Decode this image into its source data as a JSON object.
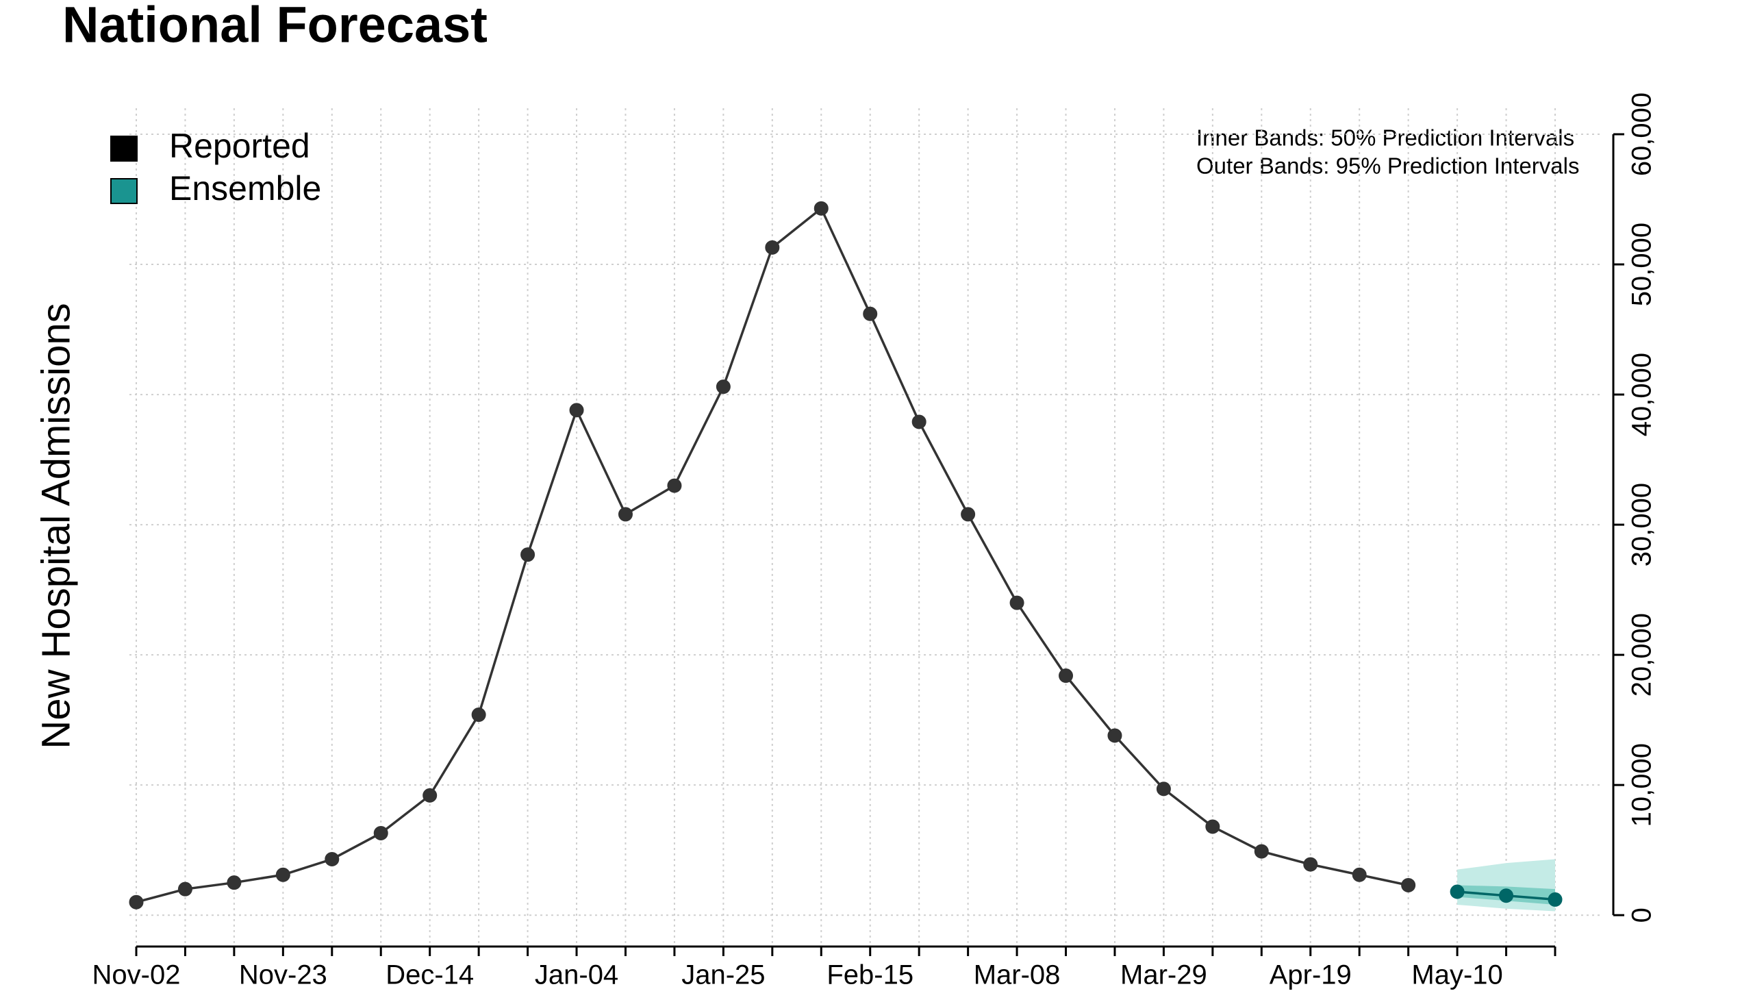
{
  "chart_data": {
    "type": "line",
    "title": "National Forecast",
    "y_label": "New Hospital Admissions",
    "annotations": [
      "Inner Bands: 50% Prediction Intervals",
      "Outer Bands: 95% Prediction Intervals"
    ],
    "categories": [
      "Nov-02",
      null,
      null,
      "Nov-23",
      null,
      null,
      "Dec-14",
      null,
      null,
      "Jan-04",
      null,
      null,
      "Jan-25",
      null,
      null,
      "Feb-15",
      null,
      null,
      "Mar-08",
      null,
      null,
      "Mar-29",
      null,
      null,
      "Apr-19",
      null,
      null,
      "May-10",
      null,
      null
    ],
    "series": [
      {
        "name": "Reported",
        "color": "#333333",
        "legend_color": "#000000",
        "values": [
          1000,
          2000,
          2500,
          3100,
          4300,
          6300,
          9200,
          15400,
          27700,
          38800,
          30800,
          33000,
          40600,
          51300,
          54300,
          46200,
          37900,
          30800,
          24000,
          18400,
          13800,
          9700,
          6800,
          4900,
          3900,
          3100,
          2300,
          null,
          null,
          null
        ]
      },
      {
        "name": "Ensemble",
        "color": "#006666",
        "legend_color": "#1a9490",
        "inner_band_color": "#7fcfc5",
        "outer_band_color": "#c4ebe6",
        "values": [
          null,
          null,
          null,
          null,
          null,
          null,
          null,
          null,
          null,
          null,
          null,
          null,
          null,
          null,
          null,
          null,
          null,
          null,
          null,
          null,
          null,
          null,
          null,
          null,
          null,
          null,
          null,
          1800,
          1500,
          1200
        ],
        "lower_95": [
          null,
          null,
          null,
          null,
          null,
          null,
          null,
          null,
          null,
          null,
          null,
          null,
          null,
          null,
          null,
          null,
          null,
          null,
          null,
          null,
          null,
          null,
          null,
          null,
          null,
          null,
          null,
          800,
          500,
          300
        ],
        "upper_95": [
          null,
          null,
          null,
          null,
          null,
          null,
          null,
          null,
          null,
          null,
          null,
          null,
          null,
          null,
          null,
          null,
          null,
          null,
          null,
          null,
          null,
          null,
          null,
          null,
          null,
          null,
          null,
          3500,
          4000,
          4300
        ],
        "lower_50": [
          null,
          null,
          null,
          null,
          null,
          null,
          null,
          null,
          null,
          null,
          null,
          null,
          null,
          null,
          null,
          null,
          null,
          null,
          null,
          null,
          null,
          null,
          null,
          null,
          null,
          null,
          null,
          1400,
          1100,
          800
        ],
        "upper_50": [
          null,
          null,
          null,
          null,
          null,
          null,
          null,
          null,
          null,
          null,
          null,
          null,
          null,
          null,
          null,
          null,
          null,
          null,
          null,
          null,
          null,
          null,
          null,
          null,
          null,
          null,
          null,
          2300,
          2200,
          2000
        ]
      }
    ],
    "ylim": [
      -2200,
      62000
    ],
    "yticks": [
      0,
      {
        "value": 10000,
        "label": "10,000"
      },
      {
        "value": 20000,
        "label": "20,000"
      },
      {
        "value": 30000,
        "label": "30,000"
      },
      {
        "value": 40000,
        "label": "40,000"
      },
      {
        "value": 50000,
        "label": "50,000"
      },
      {
        "value": 60000,
        "label": "60,000"
      }
    ],
    "grid": true,
    "legend": "top-left"
  }
}
